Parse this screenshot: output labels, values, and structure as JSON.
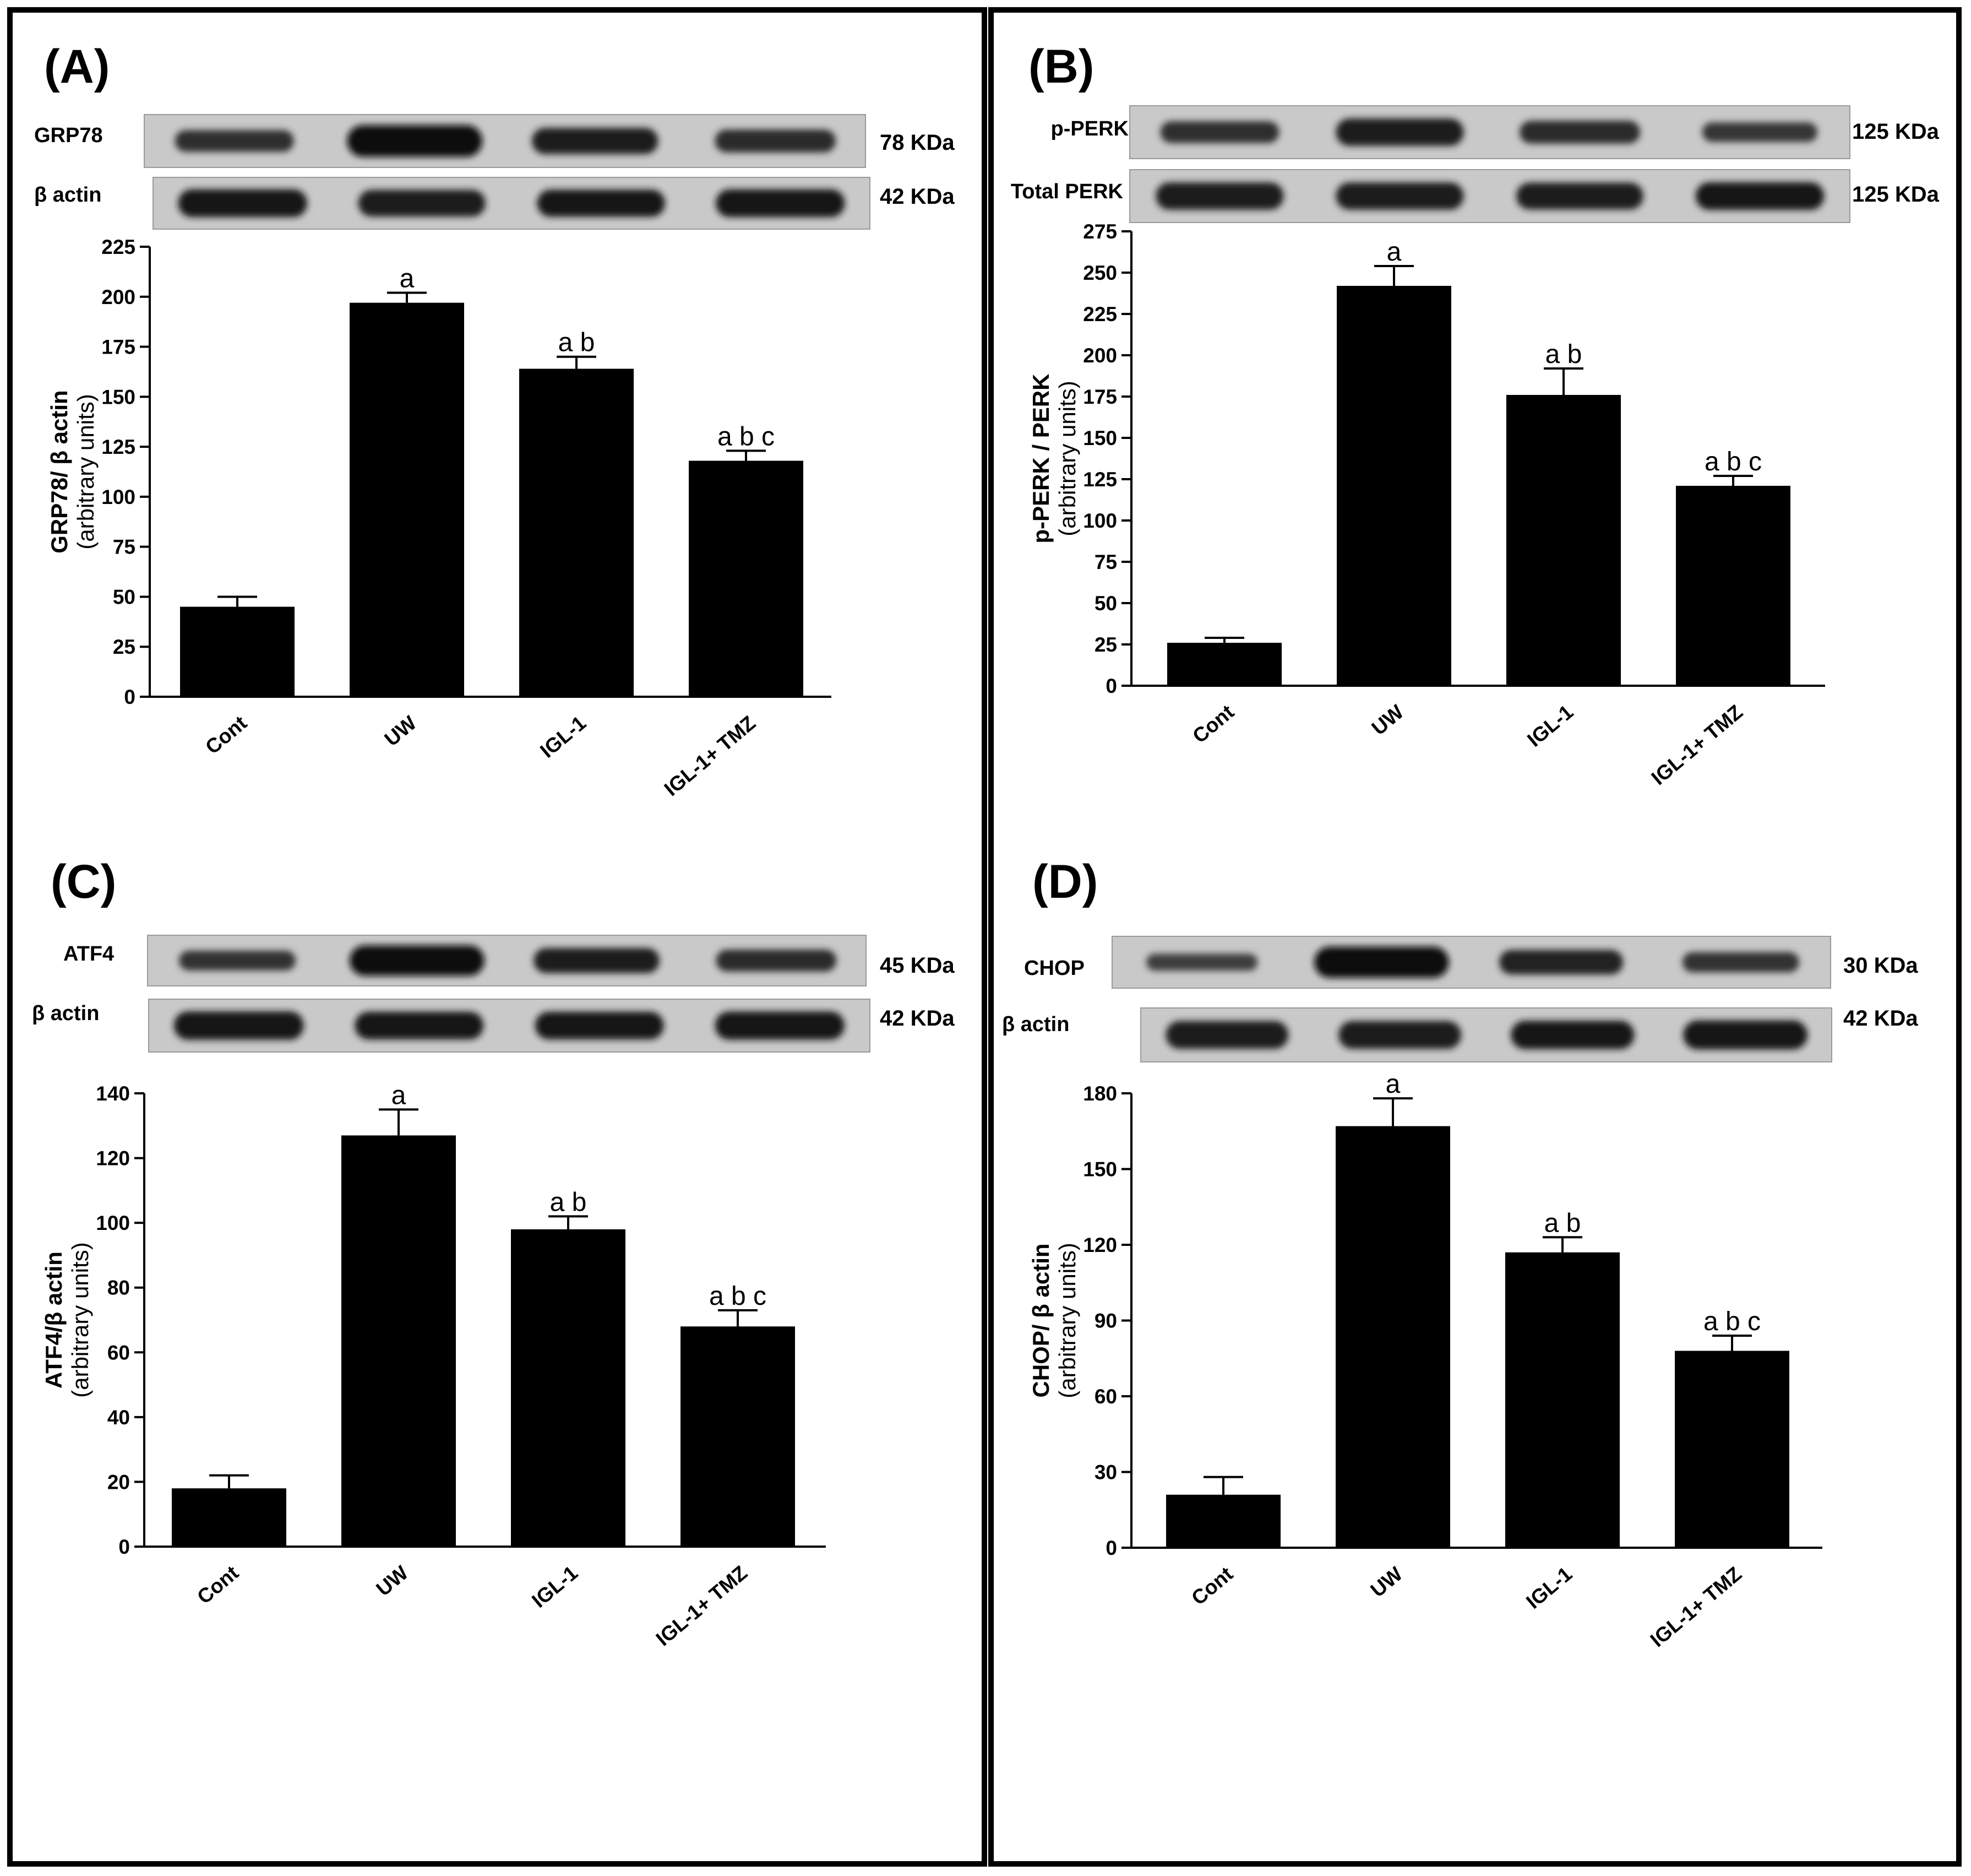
{
  "chart_data": [
    {
      "type": "bar",
      "panel": "(A)",
      "blots": [
        {
          "label": "GRP78",
          "kda": "78 KDa",
          "intensity": [
            0.55,
            1.0,
            0.75,
            0.6
          ]
        },
        {
          "label": "β actin",
          "kda": "42 KDa",
          "intensity": [
            0.85,
            0.8,
            0.82,
            0.85
          ]
        }
      ],
      "categories": [
        "Cont",
        "UW",
        "IGL-1",
        "IGL-1+ TMZ"
      ],
      "values": [
        45,
        197,
        164,
        118
      ],
      "errors": [
        5,
        5,
        6,
        5
      ],
      "significance": [
        "",
        "a",
        "a b",
        "a b c"
      ],
      "ylabel": "GRP78/ β actin",
      "ylabel_units": "(arbitrary units)",
      "ylim": [
        0,
        225
      ],
      "yticks": [
        0,
        25,
        50,
        75,
        100,
        125,
        150,
        175,
        200,
        225
      ]
    },
    {
      "type": "bar",
      "panel": "(B)",
      "blots": [
        {
          "label": "p-PERK",
          "kda": "125 KDa",
          "intensity": [
            0.55,
            0.8,
            0.6,
            0.45
          ]
        },
        {
          "label": "Total PERK",
          "kda": "125 KDa",
          "intensity": [
            0.8,
            0.8,
            0.78,
            0.82
          ]
        }
      ],
      "categories": [
        "Cont",
        "UW",
        "IGL-1",
        "IGL-1+ TMZ"
      ],
      "values": [
        26,
        242,
        176,
        121
      ],
      "errors": [
        3,
        12,
        16,
        6
      ],
      "significance": [
        "",
        "a",
        "a b",
        "a b c"
      ],
      "ylabel": "p-PERK / PERK",
      "ylabel_units": "(arbitrary units)",
      "ylim": [
        0,
        275
      ],
      "yticks": [
        0,
        25,
        50,
        75,
        100,
        125,
        150,
        175,
        200,
        225,
        250,
        275
      ]
    },
    {
      "type": "bar",
      "panel": "(C)",
      "blots": [
        {
          "label": "ATF4",
          "kda": "45 KDa",
          "intensity": [
            0.5,
            1.0,
            0.75,
            0.6
          ]
        },
        {
          "label": "β actin",
          "kda": "42 KDa",
          "intensity": [
            0.85,
            0.82,
            0.82,
            0.84
          ]
        }
      ],
      "categories": [
        "Cont",
        "UW",
        "IGL-1",
        "IGL-1+ TMZ"
      ],
      "values": [
        18,
        127,
        98,
        68
      ],
      "errors": [
        4,
        8,
        4,
        5
      ],
      "significance": [
        "",
        "a",
        "a b",
        "a b c"
      ],
      "ylabel": "ATF4/β actin",
      "ylabel_units": "(arbitrary units)",
      "ylim": [
        0,
        140
      ],
      "yticks": [
        0,
        20,
        40,
        60,
        80,
        100,
        120,
        140
      ]
    },
    {
      "type": "bar",
      "panel": "(D)",
      "blots": [
        {
          "label": "CHOP",
          "kda": "30 KDa",
          "intensity": [
            0.35,
            1.0,
            0.7,
            0.5
          ]
        },
        {
          "label": "β actin",
          "kda": "42 KDa",
          "intensity": [
            0.8,
            0.8,
            0.82,
            0.85
          ]
        }
      ],
      "categories": [
        "Cont",
        "UW",
        "IGL-1",
        "IGL-1+ TMZ"
      ],
      "values": [
        21,
        167,
        117,
        78
      ],
      "errors": [
        7,
        11,
        6,
        6
      ],
      "significance": [
        "",
        "a",
        "a b",
        "a b c"
      ],
      "ylabel": "CHOP/ β actin",
      "ylabel_units": "(arbitrary units)",
      "ylim": [
        0,
        180
      ],
      "yticks": [
        0,
        30,
        60,
        90,
        120,
        150,
        180
      ]
    }
  ]
}
